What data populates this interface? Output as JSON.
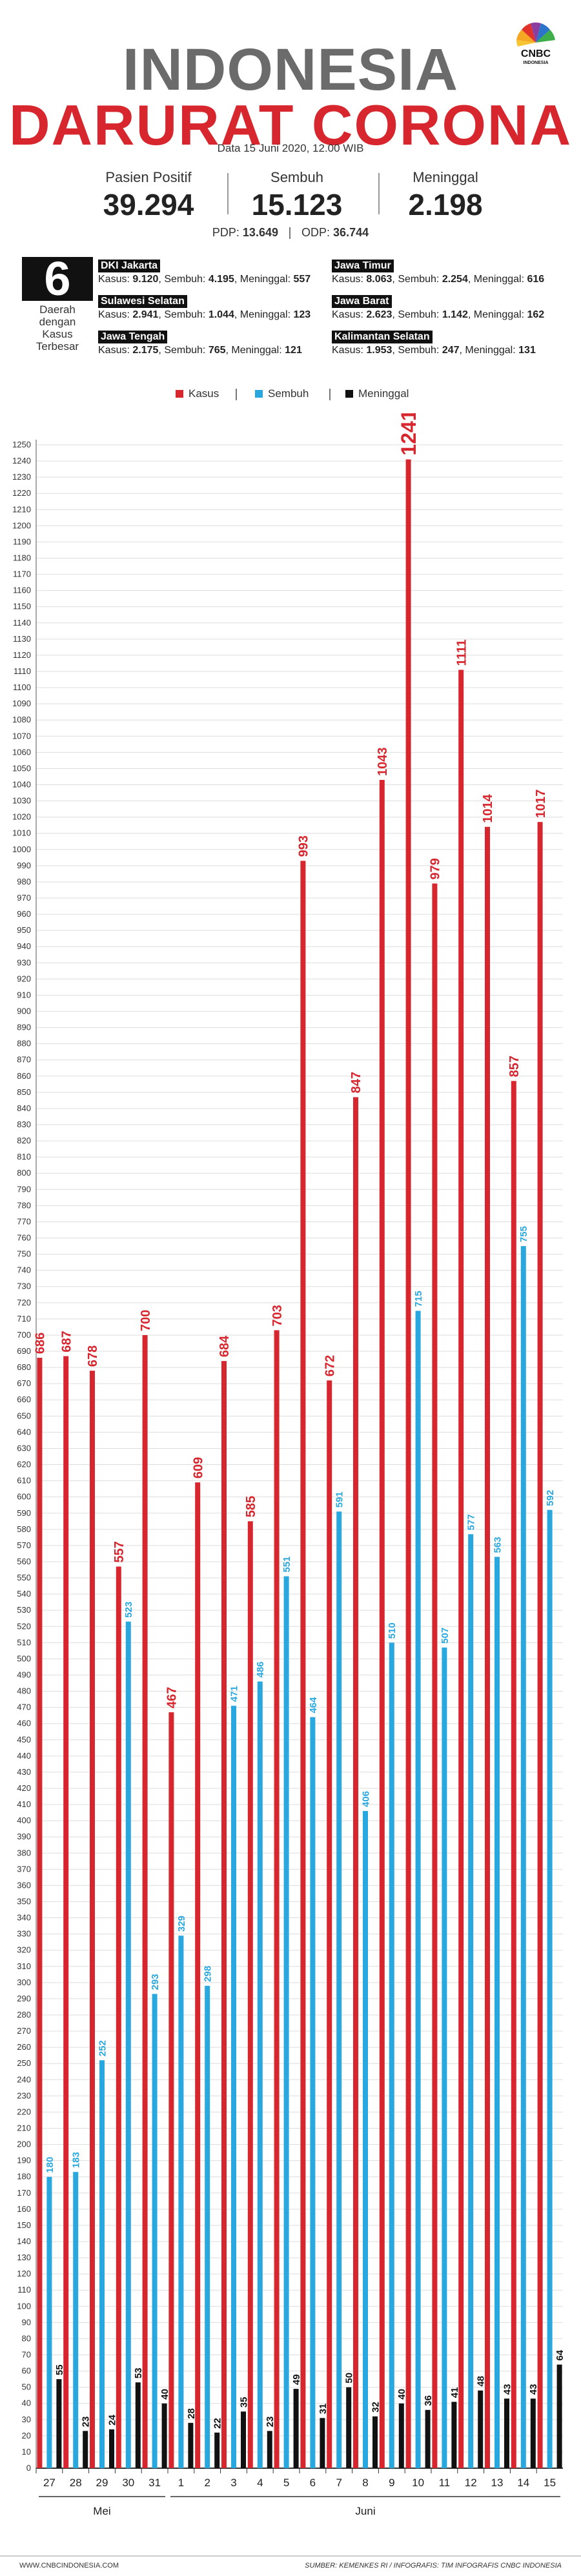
{
  "brand": {
    "logo_text": "CNBC",
    "logo_sub": "INDONESIA"
  },
  "title_line1": "INDONESIA",
  "title_line2": "DARURAT CORONA",
  "date": "Data 15 Juni 2020, 12.00 WIB",
  "stats": [
    {
      "label": "Pasien Positif",
      "value": "39.294"
    },
    {
      "label": "Sembuh",
      "value": "15.123"
    },
    {
      "label": "Meninggal",
      "value": "2.198"
    }
  ],
  "pdp": {
    "pdp_label": "PDP:",
    "pdp_value": "13.649",
    "odp_label": "ODP:",
    "odp_value": "36.744"
  },
  "regions_block": {
    "count": "6",
    "label_lines": [
      "Daerah",
      "dengan",
      "Kasus",
      "Terbesar"
    ],
    "regions": [
      {
        "name": "DKI Jakarta",
        "kasus": "9.120",
        "sembuh": "4.195",
        "meninggal": "557"
      },
      {
        "name": "Sulawesi Selatan",
        "kasus": "2.941",
        "sembuh": "1.044",
        "meninggal": "123"
      },
      {
        "name": "Jawa Tengah",
        "kasus": "2.175",
        "sembuh": "765",
        "meninggal": "121"
      },
      {
        "name": "Jawa Timur",
        "kasus": "8.063",
        "sembuh": "2.254",
        "meninggal": "616"
      },
      {
        "name": "Jawa Barat",
        "kasus": "2.623",
        "sembuh": "1.142",
        "meninggal": "162"
      },
      {
        "name": "Kalimantan Selatan",
        "kasus": "1.953",
        "sembuh": "247",
        "meninggal": "131"
      }
    ],
    "field_labels": {
      "kasus": "Kasus:",
      "sembuh": "Sembuh:",
      "meninggal": "Meninggal:"
    }
  },
  "colors": {
    "kasus": "#d7262e",
    "sembuh": "#29a8e0",
    "meninggal": "#111111",
    "grid": "#dddddd"
  },
  "chart_data": {
    "type": "bar",
    "title": "",
    "categories": [
      "27",
      "28",
      "29",
      "30",
      "31",
      "1",
      "2",
      "3",
      "4",
      "5",
      "6",
      "7",
      "8",
      "9",
      "10",
      "11",
      "12",
      "13",
      "14",
      "15"
    ],
    "month_labels": [
      {
        "label": "Mei",
        "from": 0,
        "to": 4
      },
      {
        "label": "Juni",
        "from": 5,
        "to": 19
      }
    ],
    "series": [
      {
        "name": "Kasus",
        "color_key": "kasus",
        "values": [
          686,
          687,
          678,
          557,
          700,
          467,
          609,
          684,
          585,
          703,
          993,
          672,
          847,
          1043,
          1241,
          979,
          1111,
          1014,
          857,
          1017
        ]
      },
      {
        "name": "Sembuh",
        "color_key": "sembuh",
        "values": [
          180,
          183,
          252,
          523,
          293,
          329,
          298,
          471,
          486,
          551,
          464,
          591,
          406,
          510,
          715,
          507,
          577,
          563,
          755,
          592
        ]
      },
      {
        "name": "Meninggal",
        "color_key": "meninggal",
        "values": [
          55,
          23,
          24,
          53,
          40,
          28,
          22,
          35,
          23,
          49,
          31,
          50,
          32,
          40,
          36,
          41,
          48,
          43,
          43,
          64
        ]
      }
    ],
    "ylim": [
      0,
      1250
    ],
    "ytick_step": 10,
    "grid": true,
    "legend": "top-center"
  },
  "footer": {
    "left": "WWW.CNBCINDONESIA.COM",
    "right": "SUMBER: KEMENKES RI / INFOGRAFIS: TIM INFOGRAFIS CNBC INDONESIA"
  }
}
